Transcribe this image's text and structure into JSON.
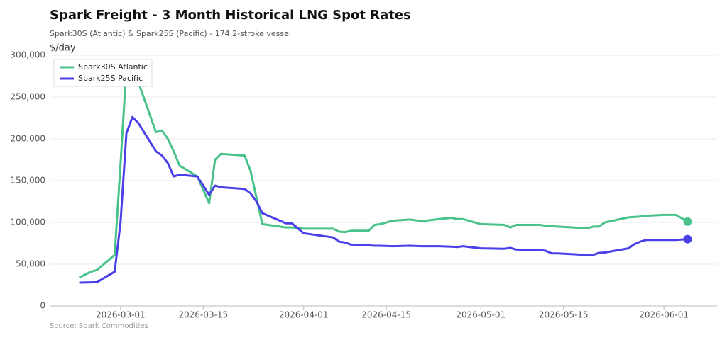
{
  "chart_data": {
    "type": "line",
    "title": "Spark Freight - 3 Month Historical LNG Spot Rates",
    "subtitle": "Spark30S (Atlantic) & Spark25S (Pacific) - 174 2-stroke vessel",
    "y_label": "$/day",
    "source": "Source: Spark Commodities",
    "x": [
      "2026-02-22",
      "2026-02-24",
      "2026-02-25",
      "2026-02-28",
      "2026-03-01",
      "2026-03-02",
      "2026-03-03",
      "2026-03-04",
      "2026-03-07",
      "2026-03-08",
      "2026-03-09",
      "2026-03-10",
      "2026-03-11",
      "2026-03-14",
      "2026-03-16",
      "2026-03-17",
      "2026-03-18",
      "2026-03-22",
      "2026-03-23",
      "2026-03-24",
      "2026-03-25",
      "2026-03-29",
      "2026-03-30",
      "2026-04-01",
      "2026-04-06",
      "2026-04-07",
      "2026-04-08",
      "2026-04-09",
      "2026-04-12",
      "2026-04-13",
      "2026-04-14",
      "2026-04-16",
      "2026-04-19",
      "2026-04-21",
      "2026-04-24",
      "2026-04-26",
      "2026-04-27",
      "2026-04-28",
      "2026-05-01",
      "2026-05-05",
      "2026-05-06",
      "2026-05-07",
      "2026-05-11",
      "2026-05-12",
      "2026-05-13",
      "2026-05-14",
      "2026-05-19",
      "2026-05-20",
      "2026-05-21",
      "2026-05-22",
      "2026-05-26",
      "2026-05-27",
      "2026-05-28",
      "2026-05-29",
      "2026-06-01",
      "2026-06-03",
      "2026-06-05"
    ],
    "series": [
      {
        "name": "Spark30S Atlantic",
        "color": "#48c28a",
        "values": [
          34000,
          41000,
          43000,
          61000,
          170000,
          285000,
          280000,
          268000,
          208000,
          210000,
          200000,
          185000,
          168000,
          155000,
          123000,
          175000,
          182000,
          180000,
          162000,
          130000,
          98000,
          94000,
          94000,
          92500,
          92500,
          89000,
          88500,
          90000,
          90000,
          97000,
          98000,
          102000,
          103500,
          101500,
          104000,
          105500,
          104000,
          104000,
          98000,
          97000,
          94000,
          97000,
          97000,
          96000,
          95500,
          95000,
          93000,
          95000,
          95000,
          100000,
          106000,
          106500,
          107000,
          108000,
          109000,
          109000,
          101000
        ]
      },
      {
        "name": "Spark25S Pacific",
        "color": "#4a3fe8",
        "values": [
          28000,
          28300,
          28500,
          41000,
          100000,
          207000,
          226000,
          219000,
          185000,
          180000,
          171000,
          155000,
          157000,
          155000,
          133000,
          144000,
          142000,
          140000,
          135000,
          125000,
          111000,
          99000,
          99000,
          87000,
          82000,
          77000,
          76000,
          73500,
          72500,
          72000,
          72000,
          71500,
          72000,
          71500,
          71500,
          71000,
          70500,
          71500,
          69000,
          68500,
          69500,
          67500,
          67000,
          66000,
          63000,
          63000,
          61000,
          61000,
          63500,
          64000,
          69000,
          74000,
          77000,
          79000,
          79000,
          79000,
          80000
        ]
      }
    ],
    "xlim": [
      "2026-02-17",
      "2026-06-10"
    ],
    "xticks": [
      "2026-03-01",
      "2026-03-15",
      "2026-04-01",
      "2026-04-15",
      "2026-05-01",
      "2026-05-15",
      "2026-06-01"
    ],
    "ylim": [
      0,
      300000
    ],
    "yticks": [
      0,
      {
        "value": 50000,
        "label": "50,000"
      },
      {
        "value": 100000,
        "label": "100,000"
      },
      {
        "value": 150000,
        "label": "150,000"
      },
      {
        "value": 200000,
        "label": "200,000"
      },
      {
        "value": 250000,
        "label": "250,000"
      },
      {
        "value": 300000,
        "label": "300,000"
      }
    ],
    "grid": true,
    "legend": "top-left",
    "end_markers": true
  }
}
